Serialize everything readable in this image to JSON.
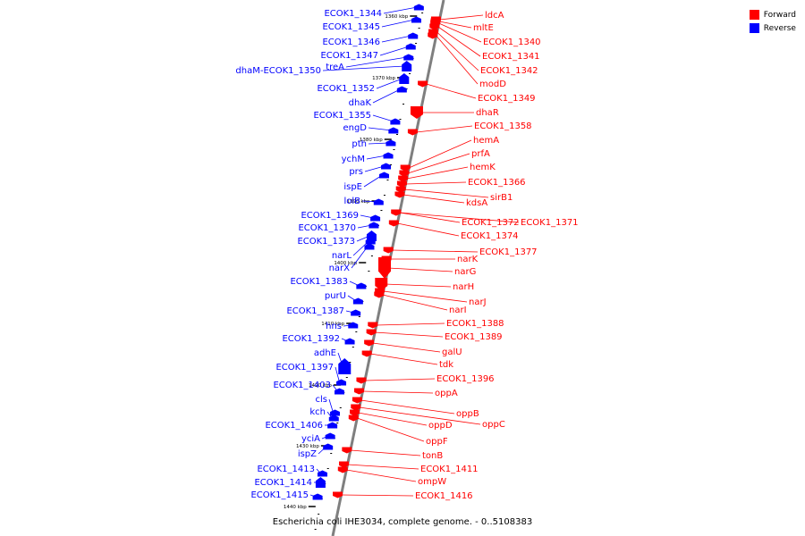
{
  "caption": "Escherichia coli IHE3034, complete genome. - 0..5108383",
  "colors": {
    "forward": "#ff0000",
    "reverse": "#0000ff",
    "backbone": "#7f7f7f"
  },
  "legend": {
    "forward_label": "Forward",
    "reverse_label": "Reverse"
  },
  "ticks": [
    "1360 kbp",
    "1370 kbp",
    "1380 kbp",
    "1390 kbp",
    "1400 kbp",
    "1410 kbp",
    "1420 kbp",
    "1430 kbp",
    "1440 kbp"
  ],
  "reverse_genes": [
    "ECOK1_1344",
    "ECOK1_1345",
    "ECOK1_1346",
    "ECOK1_1347",
    "treA",
    "dhaM-ECOK1_1350",
    "ECOK1_1352",
    "dhaK",
    "ECOK1_1355",
    "engD",
    "pth",
    "ychM",
    "prs",
    "ispE",
    "lolB",
    "ECOK1_1369",
    "ECOK1_1370",
    "ECOK1_1373",
    "narL",
    "narX",
    "ECOK1_1383",
    "purU",
    "ECOK1_1387",
    "hns",
    "ECOK1_1392",
    "adhE",
    "ECOK1_1397",
    "ECOK1_1403",
    "cls",
    "kch",
    "ECOK1_1406",
    "yciA",
    "ispZ",
    "ECOK1_1413",
    "ECOK1_1414",
    "ECOK1_1415"
  ],
  "forward_genes": [
    "ldcA",
    "mltE",
    "ECOK1_1340",
    "ECOK1_1341",
    "ECOK1_1342",
    "modD",
    "ECOK1_1349",
    "dhaR",
    "ECOK1_1358",
    "hemA",
    "prfA",
    "hemK",
    "ECOK1_1366",
    "sirB1",
    "kdsA",
    "ECOK1_1372",
    "ECOK1_1371",
    "ECOK1_1374",
    "ECOK1_1377",
    "narK",
    "narG",
    "narH",
    "narJ",
    "narI",
    "ECOK1_1388",
    "ECOK1_1389",
    "galU",
    "tdk",
    "ECOK1_1396",
    "oppA",
    "oppB",
    "oppC",
    "oppD",
    "oppF",
    "tonB",
    "ECOK1_1411",
    "ompW",
    "ECOK1_1416"
  ]
}
